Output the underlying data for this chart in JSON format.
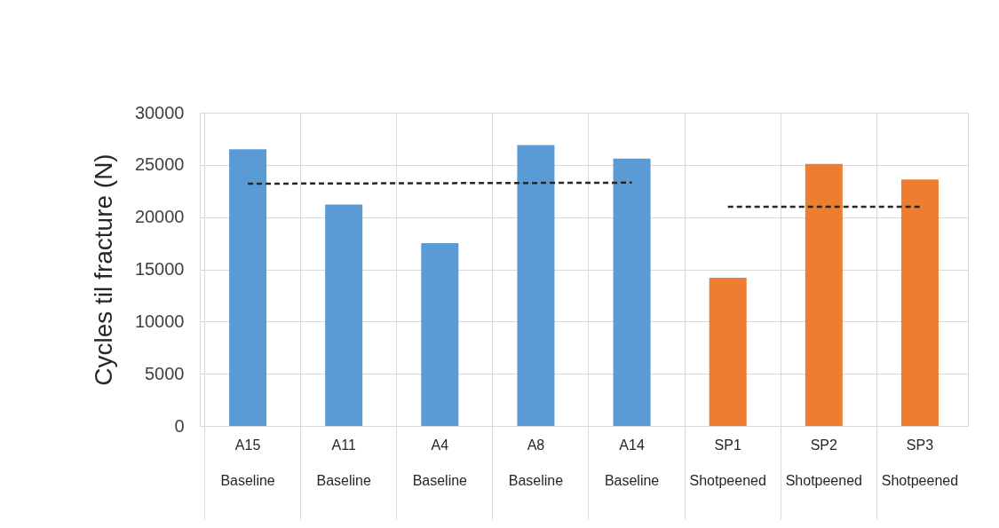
{
  "chart_data": {
    "type": "bar",
    "ylabel": "Cycles til fracture (N)",
    "categories": [
      "A15\nBaseline",
      "A11\nBaseline",
      "A4\nBaseline",
      "A8\nBaseline",
      "A14\nBaseline",
      "SP1\nShotpeened",
      "SP2\nShotpeened",
      "SP3\nShotpeened"
    ],
    "ylim": [
      0,
      30000
    ],
    "yticks": [
      0,
      5000,
      10000,
      15000,
      20000,
      25000,
      30000
    ],
    "grid": true,
    "series": [
      {
        "colors": [
          "#5b9bd5",
          "#5b9bd5",
          "#5b9bd5",
          "#5b9bd5",
          "#5b9bd5",
          "#ed7d31",
          "#ed7d31",
          "#ed7d31"
        ],
        "values": [
          26500,
          21200,
          17500,
          26900,
          25600,
          14200,
          25100,
          23600
        ]
      },
      {
        "type": "line",
        "color": "#262626",
        "line_style": "dashed",
        "x": [
          "A15\nBaseline",
          "A14\nBaseline"
        ],
        "values": [
          23200,
          23300
        ]
      },
      {
        "type": "line",
        "color": "#262626",
        "line_style": "dashed",
        "x": [
          "SP1\nShotpeened",
          "SP3\nShotpeened"
        ],
        "values": [
          21000,
          21000
        ]
      }
    ]
  }
}
